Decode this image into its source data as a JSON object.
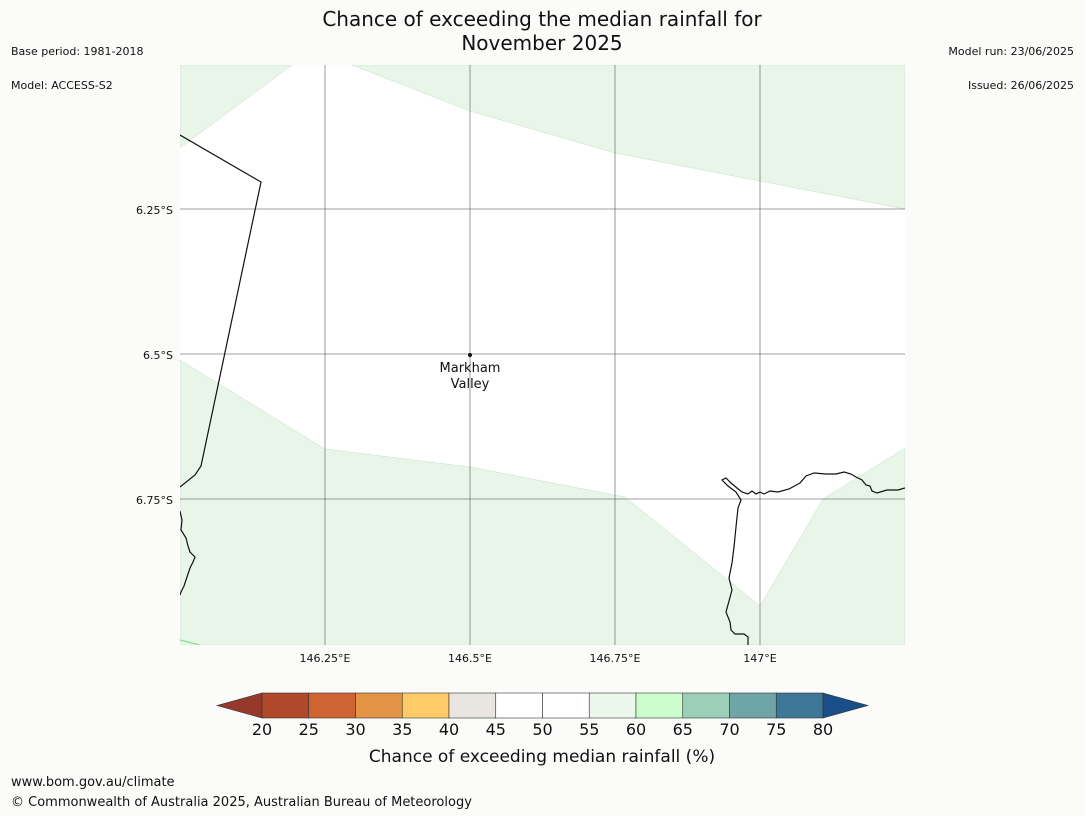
{
  "title": {
    "line1": "Chance of exceeding the median rainfall for",
    "line2": "November 2025"
  },
  "meta_left": {
    "base_period": "Base period: 1981-2018",
    "model": "Model: ACCESS-S2"
  },
  "meta_right": {
    "model_run": "Model run: 23/06/2025",
    "issued": "Issued: 26/06/2025"
  },
  "map": {
    "lon_range": [
      146.0,
      147.25
    ],
    "lat_range": [
      -6.0,
      -7.0
    ],
    "lon_ticks": [
      {
        "value": 146.25,
        "label": "146.25°E"
      },
      {
        "value": 146.5,
        "label": "146.5°E"
      },
      {
        "value": 146.75,
        "label": "146.75°E"
      },
      {
        "value": 147.0,
        "label": "147°E"
      }
    ],
    "lat_ticks": [
      {
        "value": -6.25,
        "label": "6.25°S"
      },
      {
        "value": -6.5,
        "label": "6.5°S"
      },
      {
        "value": -6.75,
        "label": "6.75°S"
      }
    ],
    "place": {
      "name_line1": "Markham",
      "name_line2": "Valley",
      "lon": 146.5,
      "lat": -6.5
    },
    "background_color": "#ffffff",
    "shade_color": "#eaf5ea",
    "grid_color": "#555555"
  },
  "colorbar": {
    "title": "Chance of exceeding median rainfall (%)",
    "labels": [
      "20",
      "25",
      "30",
      "35",
      "40",
      "45",
      "50",
      "55",
      "60",
      "65",
      "70",
      "75",
      "80"
    ],
    "colors": [
      "#b0482a",
      "#cd6431",
      "#e39446",
      "#fecb68",
      "#e9e6e2",
      "#ffffff",
      "#ffffff",
      "#eaf7ea",
      "#ccfdcc",
      "#9ccfb8",
      "#70a5a5",
      "#3e7698"
    ],
    "low_extend_color": "#97392a",
    "high_extend_color": "#1a4e88"
  },
  "footer": {
    "url": "www.bom.gov.au/climate",
    "copyright": "© Commonwealth of Australia 2025, Australian Bureau of Meteorology"
  }
}
